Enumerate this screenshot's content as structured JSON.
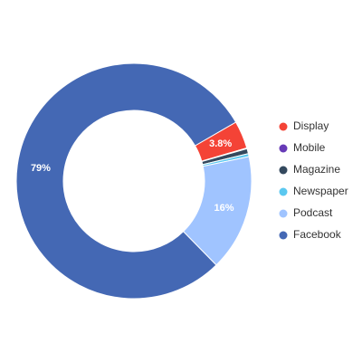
{
  "chart_data": {
    "type": "donut",
    "categories": [
      "Display",
      "Mobile",
      "Magazine",
      "Newspaper",
      "Podcast",
      "Facebook"
    ],
    "values": [
      3.8,
      0.1,
      0.7,
      0.4,
      16,
      79
    ],
    "value_labels": [
      "3.8%",
      null,
      null,
      null,
      "16%",
      "79%"
    ],
    "colors": [
      "#f44336",
      "#673ab7",
      "#34495e",
      "#5bc8f0",
      "#a0c4ff",
      "#4468b4"
    ],
    "legend": "right"
  }
}
